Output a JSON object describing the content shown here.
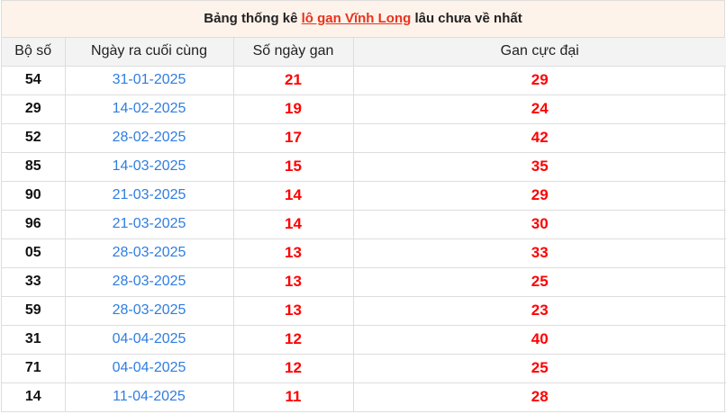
{
  "title": {
    "prefix": "Bảng thống kê ",
    "link": "lô gan Vĩnh Long",
    "suffix": " lâu chưa về nhất"
  },
  "headers": [
    "Bộ số",
    "Ngày ra cuối cùng",
    "Số ngày gan",
    "Gan cực đại"
  ],
  "rows": [
    [
      "54",
      "31-01-2025",
      "21",
      "29"
    ],
    [
      "29",
      "14-02-2025",
      "19",
      "24"
    ],
    [
      "52",
      "28-02-2025",
      "17",
      "42"
    ],
    [
      "85",
      "14-03-2025",
      "15",
      "35"
    ],
    [
      "90",
      "21-03-2025",
      "14",
      "29"
    ],
    [
      "96",
      "21-03-2025",
      "14",
      "30"
    ],
    [
      "05",
      "28-03-2025",
      "13",
      "33"
    ],
    [
      "33",
      "28-03-2025",
      "13",
      "25"
    ],
    [
      "59",
      "28-03-2025",
      "13",
      "23"
    ],
    [
      "31",
      "04-04-2025",
      "12",
      "40"
    ],
    [
      "71",
      "04-04-2025",
      "12",
      "25"
    ],
    [
      "14",
      "11-04-2025",
      "11",
      "28"
    ]
  ],
  "colors": {
    "accent": "#e8321f",
    "date": "#2f7de1",
    "value": "#ff0000",
    "title_bg": "#fdf3ea"
  }
}
